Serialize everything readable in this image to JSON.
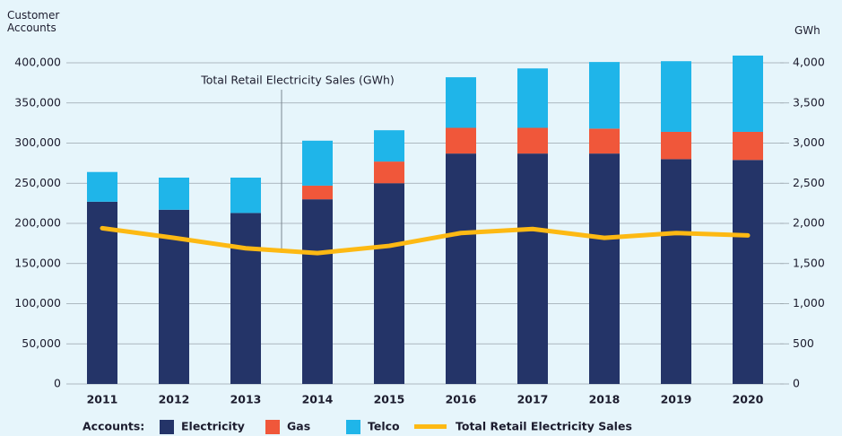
{
  "chart_data": {
    "type": "bar",
    "y_label": "Customer Accounts",
    "y2_label": "GWh",
    "annotation": "Total Retail Electricity Sales (GWh)",
    "legend_title": "Accounts:",
    "categories": [
      "2011",
      "2012",
      "2013",
      "2014",
      "2015",
      "2016",
      "2017",
      "2018",
      "2019",
      "2020"
    ],
    "series": [
      {
        "name": "Electricity",
        "color": "#243468",
        "values": [
          227000,
          217000,
          213000,
          230000,
          250000,
          287000,
          287000,
          287000,
          280000,
          279000
        ]
      },
      {
        "name": "Gas",
        "color": "#f0573a",
        "values": [
          0,
          0,
          0,
          17000,
          27000,
          32000,
          32000,
          31000,
          34000,
          35000
        ]
      },
      {
        "name": "Telco",
        "color": "#1fb5e9",
        "values": [
          37000,
          40000,
          44000,
          56000,
          39000,
          63000,
          74000,
          83000,
          88000,
          95000
        ]
      },
      {
        "name": "Total Retail Electricity Sales",
        "color": "#fdb913",
        "axis": "y2",
        "values": [
          1940,
          1820,
          1690,
          1630,
          1720,
          1880,
          1930,
          1820,
          1880,
          1850
        ]
      }
    ],
    "ylim": [
      0,
      400000
    ],
    "yticks": [
      0,
      {
        "value": 50000,
        "label": "50,000"
      },
      {
        "value": 100000,
        "label": "100,000"
      },
      {
        "value": 150000,
        "label": "150,000"
      },
      {
        "value": 200000,
        "label": "200,000"
      },
      {
        "value": 250000,
        "label": "250,000"
      },
      {
        "value": 300000,
        "label": "300,000"
      },
      {
        "value": 350000,
        "label": "350,000"
      },
      {
        "value": 400000,
        "label": "400,000"
      }
    ],
    "y2lim": [
      0,
      4000
    ],
    "y2ticks": [
      0,
      500,
      {
        "value": 1000,
        "label": "1,000"
      },
      {
        "value": 1500,
        "label": "1,500"
      },
      {
        "value": 2000,
        "label": "2,000"
      },
      {
        "value": 2500,
        "label": "2,500"
      },
      {
        "value": 3000,
        "label": "3,000"
      },
      {
        "value": 3500,
        "label": "3,500"
      },
      {
        "value": 4000,
        "label": "4,000"
      }
    ],
    "grid": true
  }
}
